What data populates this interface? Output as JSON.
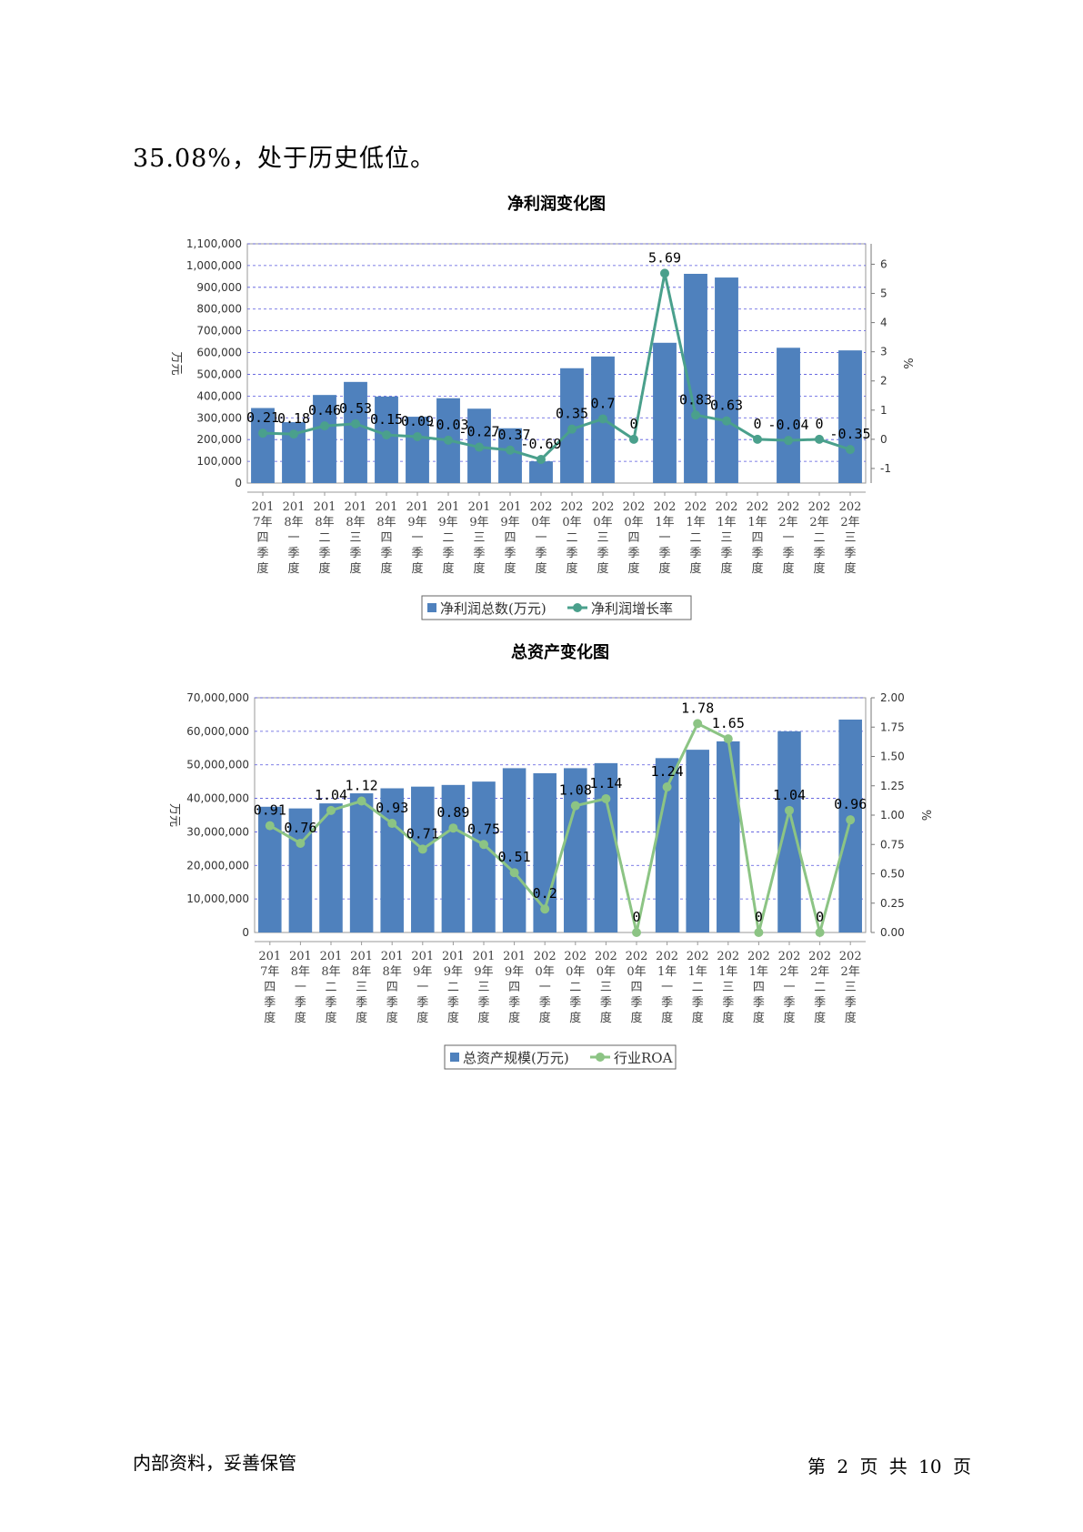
{
  "intro_text": "35.08%，处于历史低位。",
  "footer": {
    "left": "内部资料，妥善保管",
    "right": "第 2 页  共 10 页"
  },
  "colors": {
    "bar": "#4f81bd",
    "line1": "#4aa08c",
    "line2": "#8cc484",
    "grid": "#5555dd"
  },
  "chart_data": [
    {
      "type": "bar+line",
      "title": "净利润变化图",
      "ylabel_left": "万元",
      "ylabel_right": "%",
      "ylim_left": [
        0,
        1100000
      ],
      "left_ticks": [
        "0",
        "100,000",
        "200,000",
        "300,000",
        "400,000",
        "500,000",
        "600,000",
        "700,000",
        "800,000",
        "900,000",
        "1,000,000",
        "1,100,000"
      ],
      "ylim_right": [
        -1.5,
        6.7
      ],
      "right_ticks": [
        "-1",
        "0",
        "1",
        "2",
        "3",
        "4",
        "5",
        "6"
      ],
      "categories": [
        [
          "201",
          "7年",
          "四",
          "季",
          "度"
        ],
        [
          "201",
          "8年",
          "一",
          "季",
          "度"
        ],
        [
          "201",
          "8年",
          "二",
          "季",
          "度"
        ],
        [
          "201",
          "8年",
          "三",
          "季",
          "度"
        ],
        [
          "201",
          "8年",
          "四",
          "季",
          "度"
        ],
        [
          "201",
          "9年",
          "一",
          "季",
          "度"
        ],
        [
          "201",
          "9年",
          "二",
          "季",
          "度"
        ],
        [
          "201",
          "9年",
          "三",
          "季",
          "度"
        ],
        [
          "201",
          "9年",
          "四",
          "季",
          "度"
        ],
        [
          "202",
          "0年",
          "一",
          "季",
          "度"
        ],
        [
          "202",
          "0年",
          "二",
          "季",
          "度"
        ],
        [
          "202",
          "0年",
          "三",
          "季",
          "度"
        ],
        [
          "202",
          "0年",
          "四",
          "季",
          "度"
        ],
        [
          "202",
          "1年",
          "一",
          "季",
          "度"
        ],
        [
          "202",
          "1年",
          "二",
          "季",
          "度"
        ],
        [
          "202",
          "1年",
          "三",
          "季",
          "度"
        ],
        [
          "202",
          "1年",
          "四",
          "季",
          "度"
        ],
        [
          "202",
          "2年",
          "一",
          "季",
          "度"
        ],
        [
          "202",
          "2年",
          "二",
          "季",
          "度"
        ],
        [
          "202",
          "2年",
          "三",
          "季",
          "度"
        ]
      ],
      "series": [
        {
          "name": "净利润总数(万元)",
          "kind": "bar",
          "values": [
            345000,
            280000,
            405000,
            465000,
            398000,
            305000,
            390000,
            342000,
            252000,
            100000,
            528000,
            582000,
            0,
            645000,
            962000,
            945000,
            0,
            622000,
            0,
            610000
          ]
        },
        {
          "name": "净利润增长率",
          "kind": "line",
          "values": [
            0.21,
            0.18,
            0.46,
            0.53,
            0.15,
            0.09,
            -0.03,
            -0.27,
            -0.37,
            -0.69,
            0.35,
            0.7,
            0,
            5.69,
            0.83,
            0.63,
            0,
            -0.04,
            0,
            -0.35
          ],
          "labels": [
            "0.21",
            "0.18",
            "0.46",
            "0.53",
            "0.15",
            "0.09",
            "-0.03",
            "-0.27",
            "-0.37",
            "-0.69",
            "0.35",
            "0.7",
            "0",
            "5.69",
            "0.83",
            "0.63",
            "0",
            "-0.04",
            "0",
            "-0.35"
          ]
        }
      ],
      "legend": [
        "净利润总数(万元)",
        "净利润增长率"
      ],
      "grid": true
    },
    {
      "type": "bar+line",
      "title": "总资产变化图",
      "ylabel_left": "万元",
      "ylabel_right": "%",
      "ylim_left": [
        0,
        70000000
      ],
      "left_ticks": [
        "0",
        "10,000,000",
        "20,000,000",
        "30,000,000",
        "40,000,000",
        "50,000,000",
        "60,000,000",
        "70,000,000"
      ],
      "ylim_right": [
        0,
        2.0
      ],
      "right_ticks": [
        "0.00",
        "0.25",
        "0.50",
        "0.75",
        "1.00",
        "1.25",
        "1.50",
        "1.75",
        "2.00"
      ],
      "categories": [
        [
          "201",
          "7年",
          "四",
          "季",
          "度"
        ],
        [
          "201",
          "8年",
          "一",
          "季",
          "度"
        ],
        [
          "201",
          "8年",
          "二",
          "季",
          "度"
        ],
        [
          "201",
          "8年",
          "三",
          "季",
          "度"
        ],
        [
          "201",
          "8年",
          "四",
          "季",
          "度"
        ],
        [
          "201",
          "9年",
          "一",
          "季",
          "度"
        ],
        [
          "201",
          "9年",
          "二",
          "季",
          "度"
        ],
        [
          "201",
          "9年",
          "三",
          "季",
          "度"
        ],
        [
          "201",
          "9年",
          "四",
          "季",
          "度"
        ],
        [
          "202",
          "0年",
          "一",
          "季",
          "度"
        ],
        [
          "202",
          "0年",
          "二",
          "季",
          "度"
        ],
        [
          "202",
          "0年",
          "三",
          "季",
          "度"
        ],
        [
          "202",
          "0年",
          "四",
          "季",
          "度"
        ],
        [
          "202",
          "1年",
          "一",
          "季",
          "度"
        ],
        [
          "202",
          "1年",
          "二",
          "季",
          "度"
        ],
        [
          "202",
          "1年",
          "三",
          "季",
          "度"
        ],
        [
          "202",
          "1年",
          "四",
          "季",
          "度"
        ],
        [
          "202",
          "2年",
          "一",
          "季",
          "度"
        ],
        [
          "202",
          "2年",
          "二",
          "季",
          "度"
        ],
        [
          "202",
          "2年",
          "三",
          "季",
          "度"
        ]
      ],
      "series": [
        {
          "name": "总资产规模(万元)",
          "kind": "bar",
          "values": [
            37500000,
            37000000,
            38500000,
            41500000,
            43000000,
            43500000,
            44000000,
            45000000,
            49000000,
            47500000,
            49000000,
            50500000,
            0,
            52000000,
            54500000,
            57000000,
            0,
            60000000,
            0,
            63500000
          ]
        },
        {
          "name": "行业ROA",
          "kind": "line",
          "values": [
            0.91,
            0.76,
            1.04,
            1.12,
            0.93,
            0.71,
            0.89,
            0.75,
            0.51,
            0.2,
            1.08,
            1.14,
            0,
            1.24,
            1.78,
            1.65,
            0,
            1.04,
            0,
            0.96
          ],
          "labels": [
            "0.91",
            "0.76",
            "1.04",
            "1.12",
            "0.93",
            "0.71",
            "0.89",
            "0.75",
            "0.51",
            "0.2",
            "1.08",
            "1.14",
            "0",
            "1.24",
            "1.78",
            "1.65",
            "0",
            "1.04",
            "0",
            "0.96"
          ]
        }
      ],
      "legend": [
        "总资产规模(万元)",
        "行业ROA"
      ],
      "grid": true
    }
  ]
}
